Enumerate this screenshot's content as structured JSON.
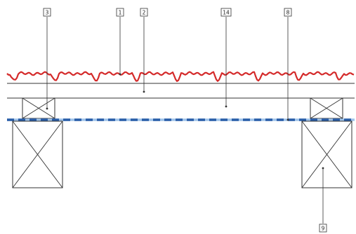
{
  "callouts": [
    {
      "id": "c3",
      "label": "3"
    },
    {
      "id": "c1",
      "label": "1"
    },
    {
      "id": "c2",
      "label": "2"
    },
    {
      "id": "c14",
      "label": "14"
    },
    {
      "id": "c8",
      "label": "8"
    },
    {
      "id": "c9",
      "label": "9"
    }
  ],
  "colors": {
    "roofing": "#d42a2a",
    "membrane_dark": "#2a5ea8",
    "membrane_light": "#9fc3ea",
    "line": "#333333"
  },
  "icons": {
    "purlin": "crossed-rectangle-icon",
    "beam": "crossed-rectangle-icon"
  }
}
